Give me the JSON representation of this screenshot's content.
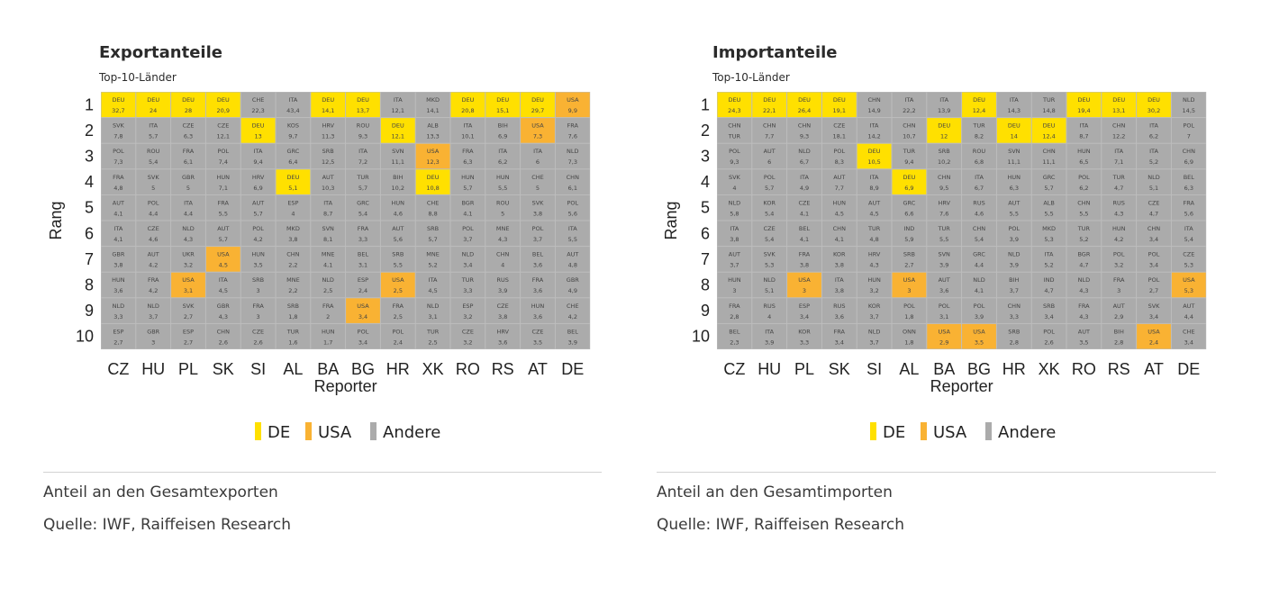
{
  "legend": [
    {
      "label": "DE",
      "color": "#FFE000"
    },
    {
      "label": "USA",
      "color": "#F9B233"
    },
    {
      "label": "Andere",
      "color": "#ABABAB"
    }
  ],
  "chart_data": [
    {
      "type": "heatmap",
      "title": "Exportanteile",
      "subtitle": "Top-10-Länder",
      "xlabel": "Reporter",
      "ylabel": "Rang",
      "x": [
        "CZ",
        "HU",
        "PL",
        "SK",
        "SI",
        "AL",
        "BA",
        "BG",
        "HR",
        "XK",
        "RO",
        "RS",
        "AT",
        "DE"
      ],
      "y": [
        "1",
        "2",
        "3",
        "4",
        "5",
        "6",
        "7",
        "8",
        "9",
        "10"
      ],
      "legend_position": "bottom",
      "footnote": "Anteil an den Gesamtexporten",
      "source": "Quelle: IWF, Raiffeisen Research",
      "cells": [
        [
          [
            "DEU",
            "32,7"
          ],
          [
            "DEU",
            "24"
          ],
          [
            "DEU",
            "28"
          ],
          [
            "DEU",
            "20,9"
          ],
          [
            "CHE",
            "22,3"
          ],
          [
            "ITA",
            "43,4"
          ],
          [
            "DEU",
            "14,1"
          ],
          [
            "DEU",
            "13,7"
          ],
          [
            "ITA",
            "12,1"
          ],
          [
            "MKD",
            "14,1"
          ],
          [
            "DEU",
            "20,8"
          ],
          [
            "DEU",
            "15,1"
          ],
          [
            "DEU",
            "29,7"
          ],
          [
            "USA",
            "9,9"
          ]
        ],
        [
          [
            "SVK",
            "7,8"
          ],
          [
            "ITA",
            "5,7"
          ],
          [
            "CZE",
            "6,3"
          ],
          [
            "CZE",
            "12,1"
          ],
          [
            "DEU",
            "13"
          ],
          [
            "KOS",
            "9,7"
          ],
          [
            "HRV",
            "11,3"
          ],
          [
            "ROU",
            "9,3"
          ],
          [
            "DEU",
            "12,1"
          ],
          [
            "ALB",
            "13,3"
          ],
          [
            "ITA",
            "10,1"
          ],
          [
            "BIH",
            "6,9"
          ],
          [
            "USA",
            "7,3"
          ],
          [
            "FRA",
            "7,6"
          ]
        ],
        [
          [
            "POL",
            "7,3"
          ],
          [
            "ROU",
            "5,4"
          ],
          [
            "FRA",
            "6,1"
          ],
          [
            "POL",
            "7,4"
          ],
          [
            "ITA",
            "9,4"
          ],
          [
            "GRC",
            "6,4"
          ],
          [
            "SRB",
            "12,5"
          ],
          [
            "ITA",
            "7,2"
          ],
          [
            "SVN",
            "11,1"
          ],
          [
            "USA",
            "12,3"
          ],
          [
            "FRA",
            "6,3"
          ],
          [
            "ITA",
            "6,2"
          ],
          [
            "ITA",
            "6"
          ],
          [
            "NLD",
            "7,3"
          ]
        ],
        [
          [
            "FRA",
            "4,8"
          ],
          [
            "SVK",
            "5"
          ],
          [
            "GBR",
            "5"
          ],
          [
            "HUN",
            "7,1"
          ],
          [
            "HRV",
            "6,9"
          ],
          [
            "DEU",
            "5,1"
          ],
          [
            "AUT",
            "10,3"
          ],
          [
            "TUR",
            "5,7"
          ],
          [
            "BIH",
            "10,2"
          ],
          [
            "DEU",
            "10,8"
          ],
          [
            "HUN",
            "5,7"
          ],
          [
            "HUN",
            "5,5"
          ],
          [
            "CHE",
            "5"
          ],
          [
            "CHN",
            "6,1"
          ]
        ],
        [
          [
            "AUT",
            "4,1"
          ],
          [
            "POL",
            "4,4"
          ],
          [
            "ITA",
            "4,4"
          ],
          [
            "FRA",
            "5,5"
          ],
          [
            "AUT",
            "5,7"
          ],
          [
            "ESP",
            "4"
          ],
          [
            "ITA",
            "8,7"
          ],
          [
            "GRC",
            "5,4"
          ],
          [
            "HUN",
            "4,6"
          ],
          [
            "CHE",
            "8,8"
          ],
          [
            "BGR",
            "4,1"
          ],
          [
            "ROU",
            "5"
          ],
          [
            "SVK",
            "3,8"
          ],
          [
            "POL",
            "5,6"
          ]
        ],
        [
          [
            "ITA",
            "4,1"
          ],
          [
            "CZE",
            "4,6"
          ],
          [
            "NLD",
            "4,3"
          ],
          [
            "AUT",
            "5,7"
          ],
          [
            "POL",
            "4,2"
          ],
          [
            "MKD",
            "3,8"
          ],
          [
            "SVN",
            "8,1"
          ],
          [
            "FRA",
            "3,3"
          ],
          [
            "AUT",
            "5,6"
          ],
          [
            "SRB",
            "5,7"
          ],
          [
            "POL",
            "3,7"
          ],
          [
            "MNE",
            "4,3"
          ],
          [
            "POL",
            "3,7"
          ],
          [
            "ITA",
            "5,5"
          ]
        ],
        [
          [
            "GBR",
            "3,8"
          ],
          [
            "AUT",
            "4,2"
          ],
          [
            "UKR",
            "3,2"
          ],
          [
            "USA",
            "4,5"
          ],
          [
            "HUN",
            "3,5"
          ],
          [
            "CHN",
            "2,2"
          ],
          [
            "MNE",
            "4,1"
          ],
          [
            "BEL",
            "3,1"
          ],
          [
            "SRB",
            "5,5"
          ],
          [
            "MNE",
            "5,2"
          ],
          [
            "NLD",
            "3,4"
          ],
          [
            "CHN",
            "4"
          ],
          [
            "BEL",
            "3,6"
          ],
          [
            "AUT",
            "4,8"
          ]
        ],
        [
          [
            "HUN",
            "3,6"
          ],
          [
            "FRA",
            "4,2"
          ],
          [
            "USA",
            "3,1"
          ],
          [
            "ITA",
            "4,5"
          ],
          [
            "SRB",
            "3"
          ],
          [
            "MNE",
            "2,2"
          ],
          [
            "NLD",
            "2,5"
          ],
          [
            "ESP",
            "2,4"
          ],
          [
            "USA",
            "2,5"
          ],
          [
            "ITA",
            "4,5"
          ],
          [
            "TUR",
            "3,3"
          ],
          [
            "RUS",
            "3,9"
          ],
          [
            "FRA",
            "3,6"
          ],
          [
            "GBR",
            "4,9"
          ]
        ],
        [
          [
            "NLD",
            "3,3"
          ],
          [
            "NLD",
            "3,7"
          ],
          [
            "SVK",
            "2,7"
          ],
          [
            "GBR",
            "4,3"
          ],
          [
            "FRA",
            "3"
          ],
          [
            "SRB",
            "1,8"
          ],
          [
            "FRA",
            "2"
          ],
          [
            "USA",
            "3,4"
          ],
          [
            "FRA",
            "2,5"
          ],
          [
            "NLD",
            "3,1"
          ],
          [
            "ESP",
            "3,2"
          ],
          [
            "CZE",
            "3,8"
          ],
          [
            "HUN",
            "3,6"
          ],
          [
            "CHE",
            "4,2"
          ]
        ],
        [
          [
            "ESP",
            "2,7"
          ],
          [
            "GBR",
            "3"
          ],
          [
            "ESP",
            "2,7"
          ],
          [
            "CHN",
            "2,6"
          ],
          [
            "CZE",
            "2,6"
          ],
          [
            "TUR",
            "1,6"
          ],
          [
            "HUN",
            "1,7"
          ],
          [
            "POL",
            "3,4"
          ],
          [
            "POL",
            "2,4"
          ],
          [
            "TUR",
            "2,5"
          ],
          [
            "CZE",
            "3,2"
          ],
          [
            "HRV",
            "3,6"
          ],
          [
            "CZE",
            "3,5"
          ],
          [
            "BEL",
            "3,9"
          ]
        ]
      ]
    },
    {
      "type": "heatmap",
      "title": "Importanteile",
      "subtitle": "Top-10-Länder",
      "xlabel": "Reporter",
      "ylabel": "Rang",
      "x": [
        "CZ",
        "HU",
        "PL",
        "SK",
        "SI",
        "AL",
        "BA",
        "BG",
        "HR",
        "XK",
        "RO",
        "RS",
        "AT",
        "DE"
      ],
      "y": [
        "1",
        "2",
        "3",
        "4",
        "5",
        "6",
        "7",
        "8",
        "9",
        "10"
      ],
      "legend_position": "bottom",
      "footnote": "Anteil an den Gesamtimporten",
      "source": "Quelle: IWF, Raiffeisen Research",
      "cells": [
        [
          [
            "DEU",
            "24,3"
          ],
          [
            "DEU",
            "22,1"
          ],
          [
            "DEU",
            "26,4"
          ],
          [
            "DEU",
            "19,1"
          ],
          [
            "CHN",
            "14,9"
          ],
          [
            "ITA",
            "22,2"
          ],
          [
            "ITA",
            "13,9"
          ],
          [
            "DEU",
            "12,4"
          ],
          [
            "ITA",
            "14,3"
          ],
          [
            "TUR",
            "14,8"
          ],
          [
            "DEU",
            "19,4"
          ],
          [
            "DEU",
            "13,1"
          ],
          [
            "DEU",
            "30,2"
          ],
          [
            "NLD",
            "14,5"
          ]
        ],
        [
          [
            "CHN",
            "TUR"
          ],
          [
            "CHN",
            "7,7"
          ],
          [
            "CHN",
            "9,3"
          ],
          [
            "CZE",
            "18,1"
          ],
          [
            "ITA",
            "14,2"
          ],
          [
            "CHN",
            "10,7"
          ],
          [
            "DEU",
            "12"
          ],
          [
            "TUR",
            "8,2"
          ],
          [
            "DEU",
            "14"
          ],
          [
            "DEU",
            "12,4"
          ],
          [
            "ITA",
            "8,7"
          ],
          [
            "CHN",
            "12,2"
          ],
          [
            "ITA",
            "6,2"
          ],
          [
            "POL",
            "7"
          ]
        ],
        [
          [
            "POL",
            "9,3"
          ],
          [
            "AUT",
            "6"
          ],
          [
            "NLD",
            "6,7"
          ],
          [
            "POL",
            "8,3"
          ],
          [
            "DEU",
            "10,5"
          ],
          [
            "TUR",
            "9,4"
          ],
          [
            "SRB",
            "10,2"
          ],
          [
            "ROU",
            "6,8"
          ],
          [
            "SVN",
            "11,1"
          ],
          [
            "CHN",
            "11,1"
          ],
          [
            "HUN",
            "6,5"
          ],
          [
            "ITA",
            "7,1"
          ],
          [
            "ITA",
            "5,2"
          ],
          [
            "CHN",
            "6,9"
          ]
        ],
        [
          [
            "SVK",
            "4"
          ],
          [
            "POL",
            "5,7"
          ],
          [
            "ITA",
            "4,9"
          ],
          [
            "AUT",
            "7,7"
          ],
          [
            "ITA",
            "8,9"
          ],
          [
            "DEU",
            "6,9"
          ],
          [
            "CHN",
            "9,5"
          ],
          [
            "ITA",
            "6,7"
          ],
          [
            "HUN",
            "6,3"
          ],
          [
            "GRC",
            "5,7"
          ],
          [
            "POL",
            "6,2"
          ],
          [
            "TUR",
            "4,7"
          ],
          [
            "NLD",
            "5,1"
          ],
          [
            "BEL",
            "6,3"
          ]
        ],
        [
          [
            "NLD",
            "5,8"
          ],
          [
            "KOR",
            "5,4"
          ],
          [
            "CZE",
            "4,1"
          ],
          [
            "HUN",
            "4,5"
          ],
          [
            "AUT",
            "4,5"
          ],
          [
            "GRC",
            "6,6"
          ],
          [
            "HRV",
            "7,6"
          ],
          [
            "RUS",
            "4,6"
          ],
          [
            "AUT",
            "5,5"
          ],
          [
            "ALB",
            "5,5"
          ],
          [
            "CHN",
            "5,5"
          ],
          [
            "RUS",
            "4,3"
          ],
          [
            "CZE",
            "4,7"
          ],
          [
            "FRA",
            "5,6"
          ]
        ],
        [
          [
            "ITA",
            "3,8"
          ],
          [
            "CZE",
            "5,4"
          ],
          [
            "BEL",
            "4,1"
          ],
          [
            "CHN",
            "4,1"
          ],
          [
            "TUR",
            "4,8"
          ],
          [
            "IND",
            "5,9"
          ],
          [
            "TUR",
            "5,5"
          ],
          [
            "CHN",
            "5,4"
          ],
          [
            "POL",
            "3,9"
          ],
          [
            "MKD",
            "5,3"
          ],
          [
            "TUR",
            "5,2"
          ],
          [
            "HUN",
            "4,2"
          ],
          [
            "CHN",
            "3,4"
          ],
          [
            "ITA",
            "5,4"
          ]
        ],
        [
          [
            "AUT",
            "3,7"
          ],
          [
            "SVK",
            "5,3"
          ],
          [
            "FRA",
            "3,8"
          ],
          [
            "KOR",
            "3,8"
          ],
          [
            "HRV",
            "4,3"
          ],
          [
            "SRB",
            "2,7"
          ],
          [
            "SVN",
            "3,9"
          ],
          [
            "GRC",
            "4,4"
          ],
          [
            "NLD",
            "3,9"
          ],
          [
            "ITA",
            "5,2"
          ],
          [
            "BGR",
            "4,7"
          ],
          [
            "POL",
            "3,2"
          ],
          [
            "POL",
            "3,4"
          ],
          [
            "CZE",
            "5,3"
          ]
        ],
        [
          [
            "HUN",
            "3"
          ],
          [
            "NLD",
            "5,1"
          ],
          [
            "USA",
            "3"
          ],
          [
            "ITA",
            "3,8"
          ],
          [
            "HUN",
            "3,2"
          ],
          [
            "USA",
            "3"
          ],
          [
            "AUT",
            "3,6"
          ],
          [
            "NLD",
            "4,1"
          ],
          [
            "BIH",
            "3,7"
          ],
          [
            "IND",
            "4,7"
          ],
          [
            "NLD",
            "4,3"
          ],
          [
            "FRA",
            "3"
          ],
          [
            "POL",
            "2,7"
          ],
          [
            "USA",
            "5,3"
          ]
        ],
        [
          [
            "FRA",
            "2,8"
          ],
          [
            "RUS",
            "4"
          ],
          [
            "ESP",
            "3,4"
          ],
          [
            "RUS",
            "3,6"
          ],
          [
            "KOR",
            "3,7"
          ],
          [
            "POL",
            "1,8"
          ],
          [
            "POL",
            "3,1"
          ],
          [
            "POL",
            "3,9"
          ],
          [
            "CHN",
            "3,3"
          ],
          [
            "SRB",
            "3,4"
          ],
          [
            "FRA",
            "4,3"
          ],
          [
            "AUT",
            "2,9"
          ],
          [
            "SVK",
            "3,4"
          ],
          [
            "AUT",
            "4,4"
          ]
        ],
        [
          [
            "BEL",
            "2,3"
          ],
          [
            "ITA",
            "3,9"
          ],
          [
            "KOR",
            "3,3"
          ],
          [
            "FRA",
            "3,4"
          ],
          [
            "NLD",
            "3,7"
          ],
          [
            "ONN",
            "1,8"
          ],
          [
            "USA",
            "2,9"
          ],
          [
            "USA",
            "3,5"
          ],
          [
            "SRB",
            "2,8"
          ],
          [
            "POL",
            "2,6"
          ],
          [
            "AUT",
            "3,5"
          ],
          [
            "BIH",
            "2,8"
          ],
          [
            "USA",
            "2,4"
          ],
          [
            "CHE",
            "3,4"
          ]
        ]
      ]
    }
  ]
}
